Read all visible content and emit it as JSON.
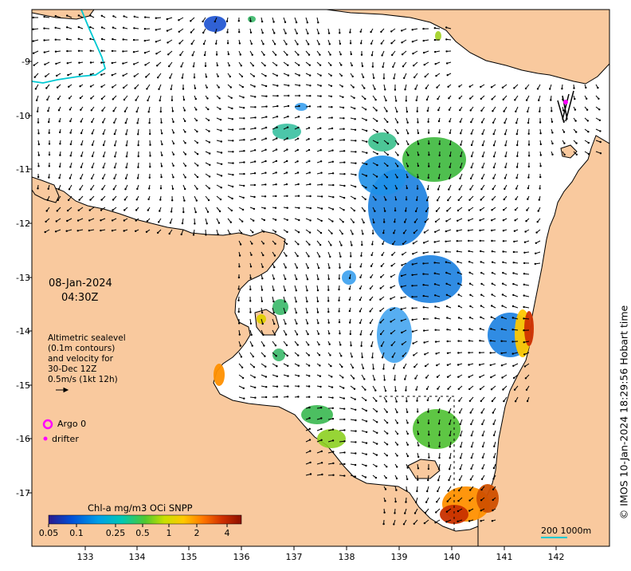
{
  "map": {
    "date": "08-Jan-2024",
    "time": "04:30Z",
    "info_lines": [
      "Altimetric sealevel",
      "(0.1m contours)",
      "and velocity for",
      "30-Dec 12Z",
      "0.5m/s (1kt 12h)"
    ],
    "legend": {
      "argo": "Argo 0",
      "drifter": "drifter"
    },
    "credit": "© IMOS 10-Jan-2024 18:29:56 Hobart time",
    "scale_bar": "200  1000m",
    "axes": {
      "longitudes": [
        "133",
        "134",
        "135",
        "136",
        "137",
        "138",
        "139",
        "140",
        "141",
        "142"
      ],
      "latitudes": [
        "9",
        "10",
        "11",
        "12",
        "13",
        "14",
        "15",
        "16",
        "17"
      ],
      "lat_prefix": "-"
    },
    "colorbar": {
      "title": "Chl-a mg/m3 OCi SNPP",
      "ticks": [
        "0.05",
        "0.1",
        "0.25",
        "0.5",
        "1",
        "2",
        "4"
      ],
      "colors": [
        "#2c1a8c",
        "#0050d8",
        "#00a0e8",
        "#00c8b4",
        "#50c830",
        "#c8e000",
        "#ffc800",
        "#ff7800",
        "#d03000",
        "#8c1000"
      ]
    },
    "colors": {
      "land": "#f9c99e",
      "sea": "#ffffff",
      "coast": "#000000",
      "contour": "#00c8d2",
      "argo": "#ff00ff",
      "drifter": "#ff00ff"
    }
  }
}
